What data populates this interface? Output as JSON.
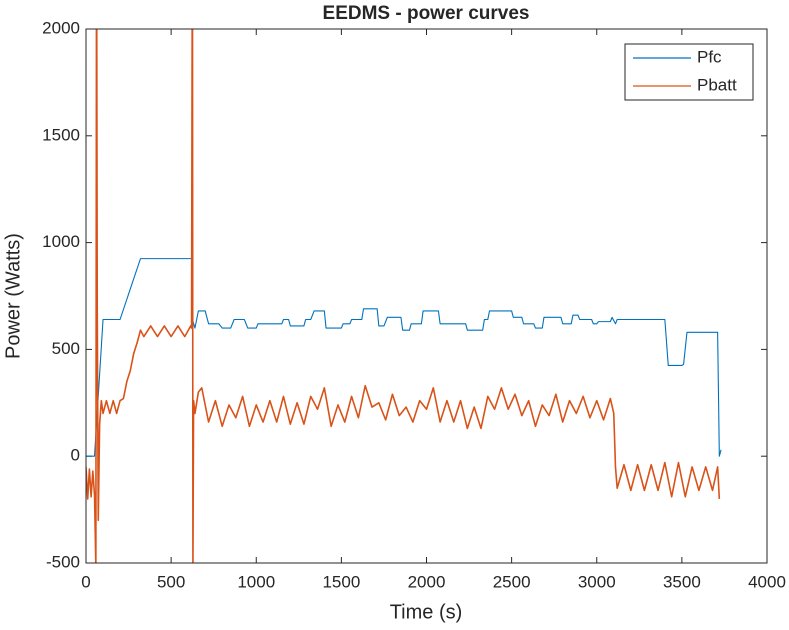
{
  "chart_data": {
    "type": "line",
    "title": "EEDMS - power curves",
    "xlabel": "Time (s)",
    "ylabel": "Power (Watts)",
    "xlim": [
      0,
      4000
    ],
    "ylim": [
      -500,
      2000
    ],
    "xticks": [
      0,
      500,
      1000,
      1500,
      2000,
      2500,
      3000,
      3500,
      4000
    ],
    "yticks": [
      -500,
      0,
      500,
      1000,
      1500,
      2000
    ],
    "legend": "upper right",
    "series": [
      {
        "name": "Pfc",
        "color": "#0072BD",
        "x": [
          0,
          50,
          100,
          200,
          320,
          620,
          625,
          640,
          660,
          700,
          720,
          780,
          800,
          850,
          870,
          930,
          950,
          1000,
          1010,
          1150,
          1160,
          1190,
          1200,
          1280,
          1290,
          1320,
          1340,
          1400,
          1410,
          1500,
          1510,
          1550,
          1560,
          1620,
          1630,
          1710,
          1720,
          1750,
          1770,
          1850,
          1860,
          1900,
          1910,
          1970,
          1980,
          2070,
          2080,
          2230,
          2240,
          2330,
          2340,
          2360,
          2370,
          2500,
          2510,
          2560,
          2570,
          2630,
          2640,
          2680,
          2690,
          2790,
          2800,
          2850,
          2860,
          2890,
          2900,
          2970,
          2980,
          3000,
          3010,
          3080,
          3090,
          3110,
          3120,
          3400,
          3420,
          3500,
          3510,
          3530,
          3710,
          3720,
          3730
        ],
        "values": [
          0,
          0,
          640,
          640,
          925,
          925,
          640,
          600,
          680,
          680,
          620,
          620,
          600,
          600,
          640,
          640,
          600,
          600,
          620,
          620,
          640,
          640,
          610,
          610,
          640,
          640,
          680,
          680,
          600,
          600,
          620,
          620,
          640,
          640,
          690,
          690,
          610,
          610,
          650,
          650,
          590,
          590,
          620,
          620,
          680,
          680,
          620,
          620,
          590,
          590,
          640,
          640,
          680,
          680,
          650,
          650,
          620,
          620,
          600,
          600,
          650,
          650,
          620,
          620,
          660,
          660,
          640,
          640,
          620,
          620,
          630,
          630,
          650,
          620,
          640,
          640,
          425,
          425,
          430,
          580,
          580,
          0,
          30
        ]
      },
      {
        "name": "Pbatt",
        "color": "#D95319",
        "x": [
          0,
          10,
          20,
          30,
          40,
          50,
          58,
          62,
          66,
          72,
          80,
          90,
          100,
          120,
          140,
          160,
          180,
          200,
          220,
          240,
          260,
          280,
          300,
          320,
          340,
          380,
          420,
          460,
          500,
          540,
          580,
          615,
          620,
          625,
          628,
          632,
          640,
          660,
          680,
          720,
          760,
          800,
          840,
          880,
          920,
          960,
          1000,
          1040,
          1080,
          1120,
          1160,
          1200,
          1240,
          1280,
          1320,
          1360,
          1400,
          1440,
          1480,
          1520,
          1560,
          1600,
          1640,
          1680,
          1720,
          1760,
          1800,
          1840,
          1880,
          1920,
          1960,
          2000,
          2040,
          2080,
          2120,
          2160,
          2200,
          2240,
          2280,
          2320,
          2360,
          2400,
          2440,
          2480,
          2520,
          2560,
          2600,
          2640,
          2680,
          2720,
          2760,
          2800,
          2840,
          2880,
          2920,
          2960,
          3000,
          3040,
          3080,
          3100,
          3110,
          3120,
          3160,
          3200,
          3240,
          3280,
          3320,
          3360,
          3400,
          3440,
          3480,
          3520,
          3560,
          3600,
          3640,
          3680,
          3710,
          3720
        ],
        "values": [
          -50,
          -200,
          -60,
          -190,
          -70,
          -180,
          -520,
          2600,
          700,
          -300,
          150,
          260,
          200,
          260,
          200,
          260,
          200,
          260,
          270,
          350,
          400,
          480,
          530,
          590,
          560,
          610,
          560,
          610,
          560,
          610,
          560,
          610,
          600,
          2600,
          -520,
          260,
          200,
          300,
          320,
          160,
          260,
          140,
          240,
          180,
          280,
          140,
          240,
          160,
          260,
          160,
          280,
          150,
          250,
          150,
          280,
          220,
          320,
          140,
          240,
          160,
          280,
          180,
          330,
          230,
          250,
          170,
          290,
          190,
          230,
          160,
          260,
          220,
          320,
          160,
          260,
          160,
          260,
          130,
          230,
          130,
          280,
          220,
          320,
          220,
          290,
          190,
          260,
          140,
          240,
          190,
          290,
          160,
          260,
          200,
          280,
          180,
          260,
          170,
          270,
          200,
          -50,
          -150,
          -40,
          -160,
          -40,
          -160,
          -40,
          -160,
          -30,
          -190,
          -30,
          -190,
          -50,
          -160,
          -50,
          -160,
          -50,
          -200
        ]
      }
    ]
  }
}
